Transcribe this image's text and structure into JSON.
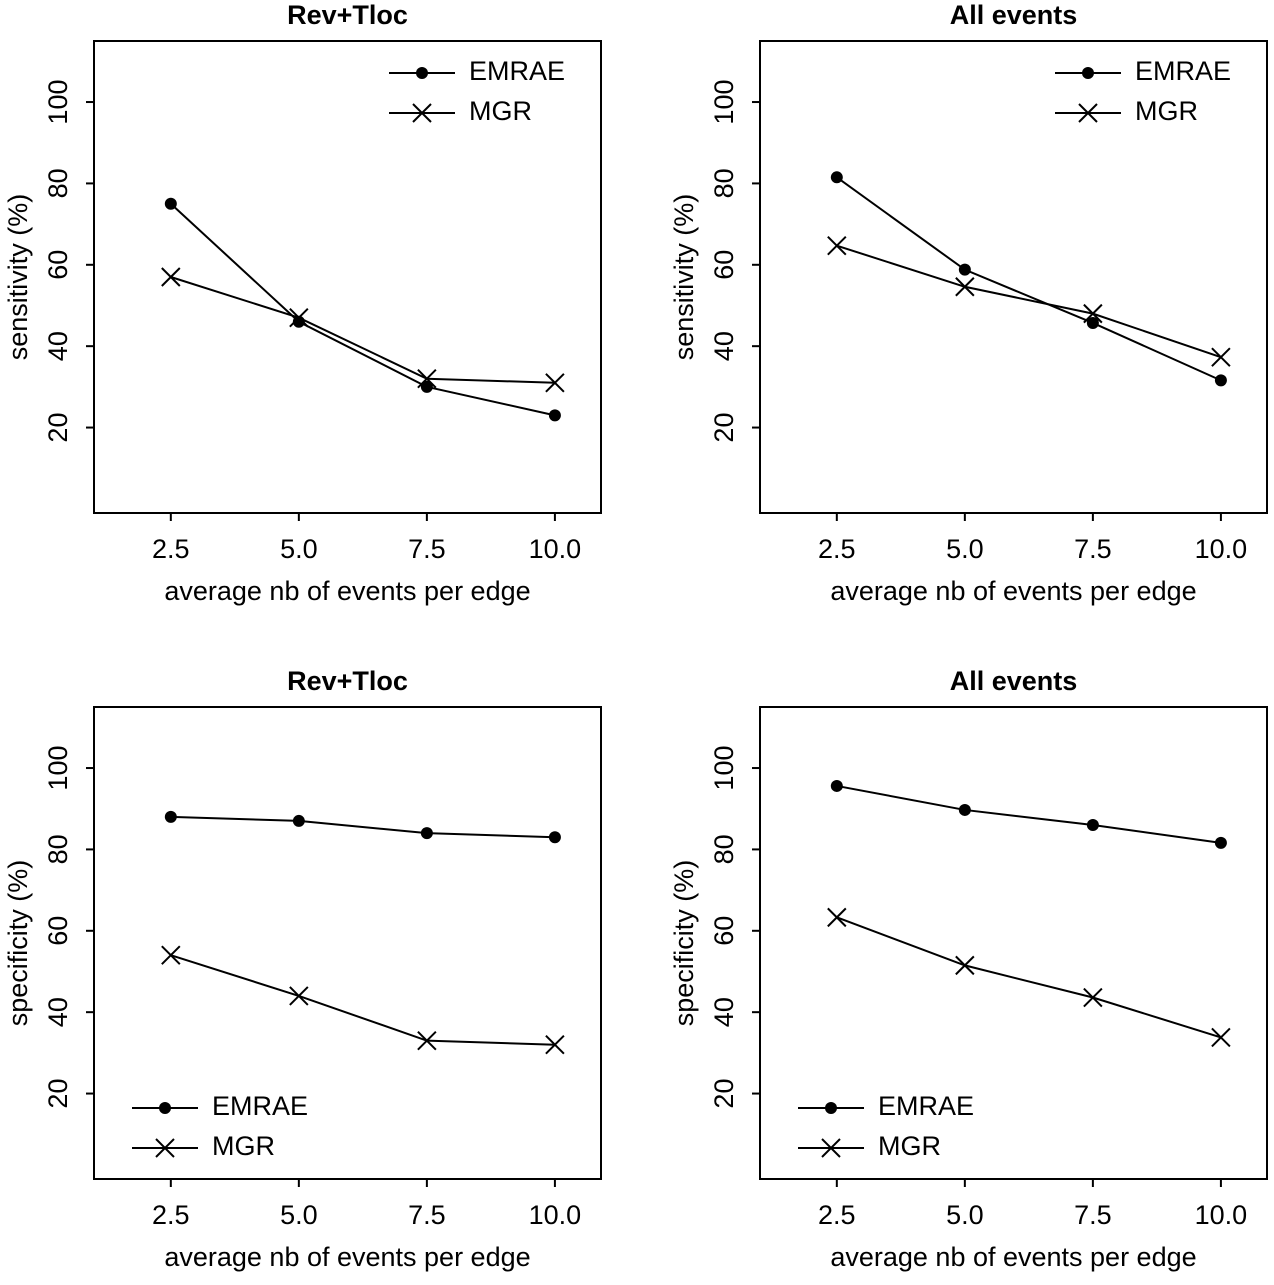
{
  "chart_data": [
    {
      "type": "line",
      "title": "Rev+Tloc",
      "x_label": "average nb of events per edge",
      "y_label": "sensitivity (%)",
      "x": [
        2.5,
        5,
        7.5,
        10
      ],
      "series": [
        {
          "name": "EMRAE",
          "color": "#000000",
          "marker": "circle",
          "values": [
            75,
            46,
            30,
            23
          ]
        },
        {
          "name": "MGR",
          "color": "#000000",
          "marker": "x",
          "values": [
            57,
            47,
            32,
            31
          ]
        }
      ],
      "xlim": [
        1,
        10.9
      ],
      "ylim": [
        -1,
        115
      ],
      "xticks": [
        2.5,
        {
          "value": 5,
          "label": "5.0"
        },
        7.5,
        {
          "value": 10,
          "label": "10.0"
        }
      ],
      "yticks": [
        20,
        40,
        60,
        80,
        100
      ],
      "legend": "topright"
    },
    {
      "type": "line",
      "title": "All events",
      "x_label": "average nb of events per edge",
      "y_label": "sensitivity (%)",
      "x": [
        2.5,
        5,
        7.5,
        10
      ],
      "series": [
        {
          "name": "EMRAE",
          "color": "#000000",
          "marker": "circle",
          "values": [
            81.5,
            58.8,
            45.7,
            31.6
          ]
        },
        {
          "name": "MGR",
          "color": "#000000",
          "marker": "x",
          "values": [
            64.7,
            54.6,
            48,
            37.3
          ]
        }
      ],
      "xlim": [
        1,
        10.9
      ],
      "ylim": [
        -1,
        115
      ],
      "xticks": [
        2.5,
        {
          "value": 5,
          "label": "5.0"
        },
        7.5,
        {
          "value": 10,
          "label": "10.0"
        }
      ],
      "yticks": [
        20,
        40,
        60,
        80,
        100
      ],
      "legend": "topright"
    },
    {
      "type": "line",
      "title": "Rev+Tloc",
      "x_label": "average nb of events per edge",
      "y_label": "specificity (%)",
      "x": [
        2.5,
        5,
        7.5,
        10
      ],
      "series": [
        {
          "name": "EMRAE",
          "color": "#000000",
          "marker": "circle",
          "values": [
            88,
            87,
            84,
            83
          ]
        },
        {
          "name": "MGR",
          "color": "#000000",
          "marker": "x",
          "values": [
            54,
            44,
            33,
            32
          ]
        }
      ],
      "xlim": [
        1,
        10.9
      ],
      "ylim": [
        -1,
        115
      ],
      "xticks": [
        2.5,
        {
          "value": 5,
          "label": "5.0"
        },
        7.5,
        {
          "value": 10,
          "label": "10.0"
        }
      ],
      "yticks": [
        20,
        40,
        60,
        80,
        100
      ],
      "legend": "bottomleft"
    },
    {
      "type": "line",
      "title": "All events",
      "x_label": "average nb of events per edge",
      "y_label": "specificity (%)",
      "x": [
        2.5,
        5,
        7.5,
        10
      ],
      "series": [
        {
          "name": "EMRAE",
          "color": "#000000",
          "marker": "circle",
          "values": [
            95.6,
            89.7,
            86,
            81.6
          ]
        },
        {
          "name": "MGR",
          "color": "#000000",
          "marker": "x",
          "values": [
            63.3,
            51.5,
            43.6,
            33.8
          ]
        }
      ],
      "xlim": [
        1,
        10.9
      ],
      "ylim": [
        -1,
        115
      ],
      "xticks": [
        2.5,
        {
          "value": 5,
          "label": "5.0"
        },
        7.5,
        {
          "value": 10,
          "label": "10.0"
        }
      ],
      "yticks": [
        20,
        40,
        60,
        80,
        100
      ],
      "legend": "bottomleft"
    }
  ]
}
